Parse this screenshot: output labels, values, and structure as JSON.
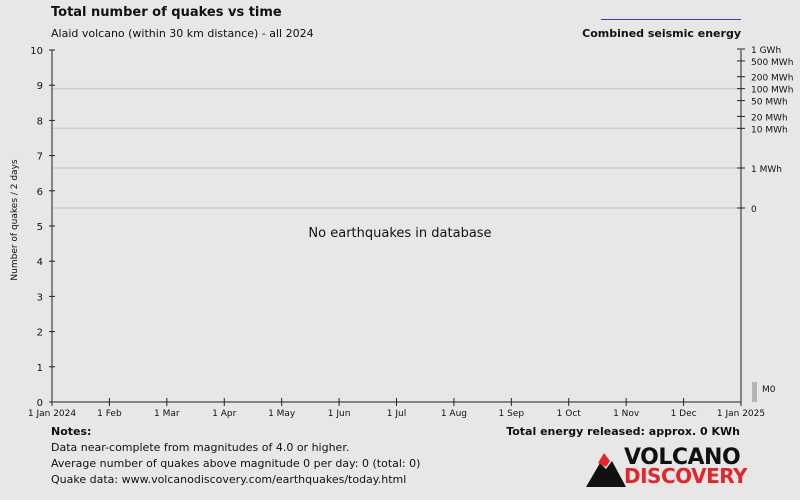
{
  "header": {
    "title": "Total number of quakes vs time",
    "subtitle": "Alaid volcano (within 30 km distance) - all 2024",
    "legend_label": "Combined seismic energy"
  },
  "chart_data": {
    "type": "line",
    "ylabel": "Number of quakes / 2 days",
    "xlabel": "",
    "ylim": [
      0,
      10
    ],
    "yticks": [
      "0",
      "1",
      "2",
      "3",
      "4",
      "5",
      "6",
      "7",
      "8",
      "9",
      "10"
    ],
    "xticks": [
      "1 Jan 2024",
      "1 Feb",
      "1 Mar",
      "1 Apr",
      "1 May",
      "1 Jun",
      "1 Jul",
      "1 Aug",
      "1 Sep",
      "1 Oct",
      "1 Nov",
      "1 Dec",
      "1 Jan 2025"
    ],
    "secondary_axis": {
      "label": "Combined seismic energy",
      "ticks": [
        {
          "label": "1 GWh",
          "energy_wh": 1000000000.0
        },
        {
          "label": "500 MWh",
          "energy_wh": 500000000.0
        },
        {
          "label": "200 MWh",
          "energy_wh": 200000000.0
        },
        {
          "label": "100 MWh",
          "energy_wh": 100000000.0
        },
        {
          "label": "50 MWh",
          "energy_wh": 50000000.0
        },
        {
          "label": "20 MWh",
          "energy_wh": 20000000.0
        },
        {
          "label": "10 MWh",
          "energy_wh": 10000000.0
        },
        {
          "label": "1 MWh",
          "energy_wh": 1000000.0
        },
        {
          "label": "0",
          "energy_wh": 0
        }
      ]
    },
    "series": [],
    "magnitude_legend": [
      "M0"
    ],
    "no_data_text": "No earthquakes in database"
  },
  "notes": {
    "title": "Notes:",
    "lines": [
      "Data near-complete from magnitudes of 4.0 or higher.",
      "Average number of quakes above magnitude 0 per day: 0 (total: 0)",
      "Quake data: www.volcanodiscovery.com/earthquakes/today.html"
    ],
    "energy_total": "Total energy released: approx. 0 KWh"
  },
  "logo": {
    "line1": "VOLCANO",
    "line2": "DISCOVERY"
  },
  "colors": {
    "background": "#e7e7e7",
    "gridline": "#cfcfcf",
    "legend_line": "#3b3bd6",
    "logo_red": "#e3262b"
  }
}
